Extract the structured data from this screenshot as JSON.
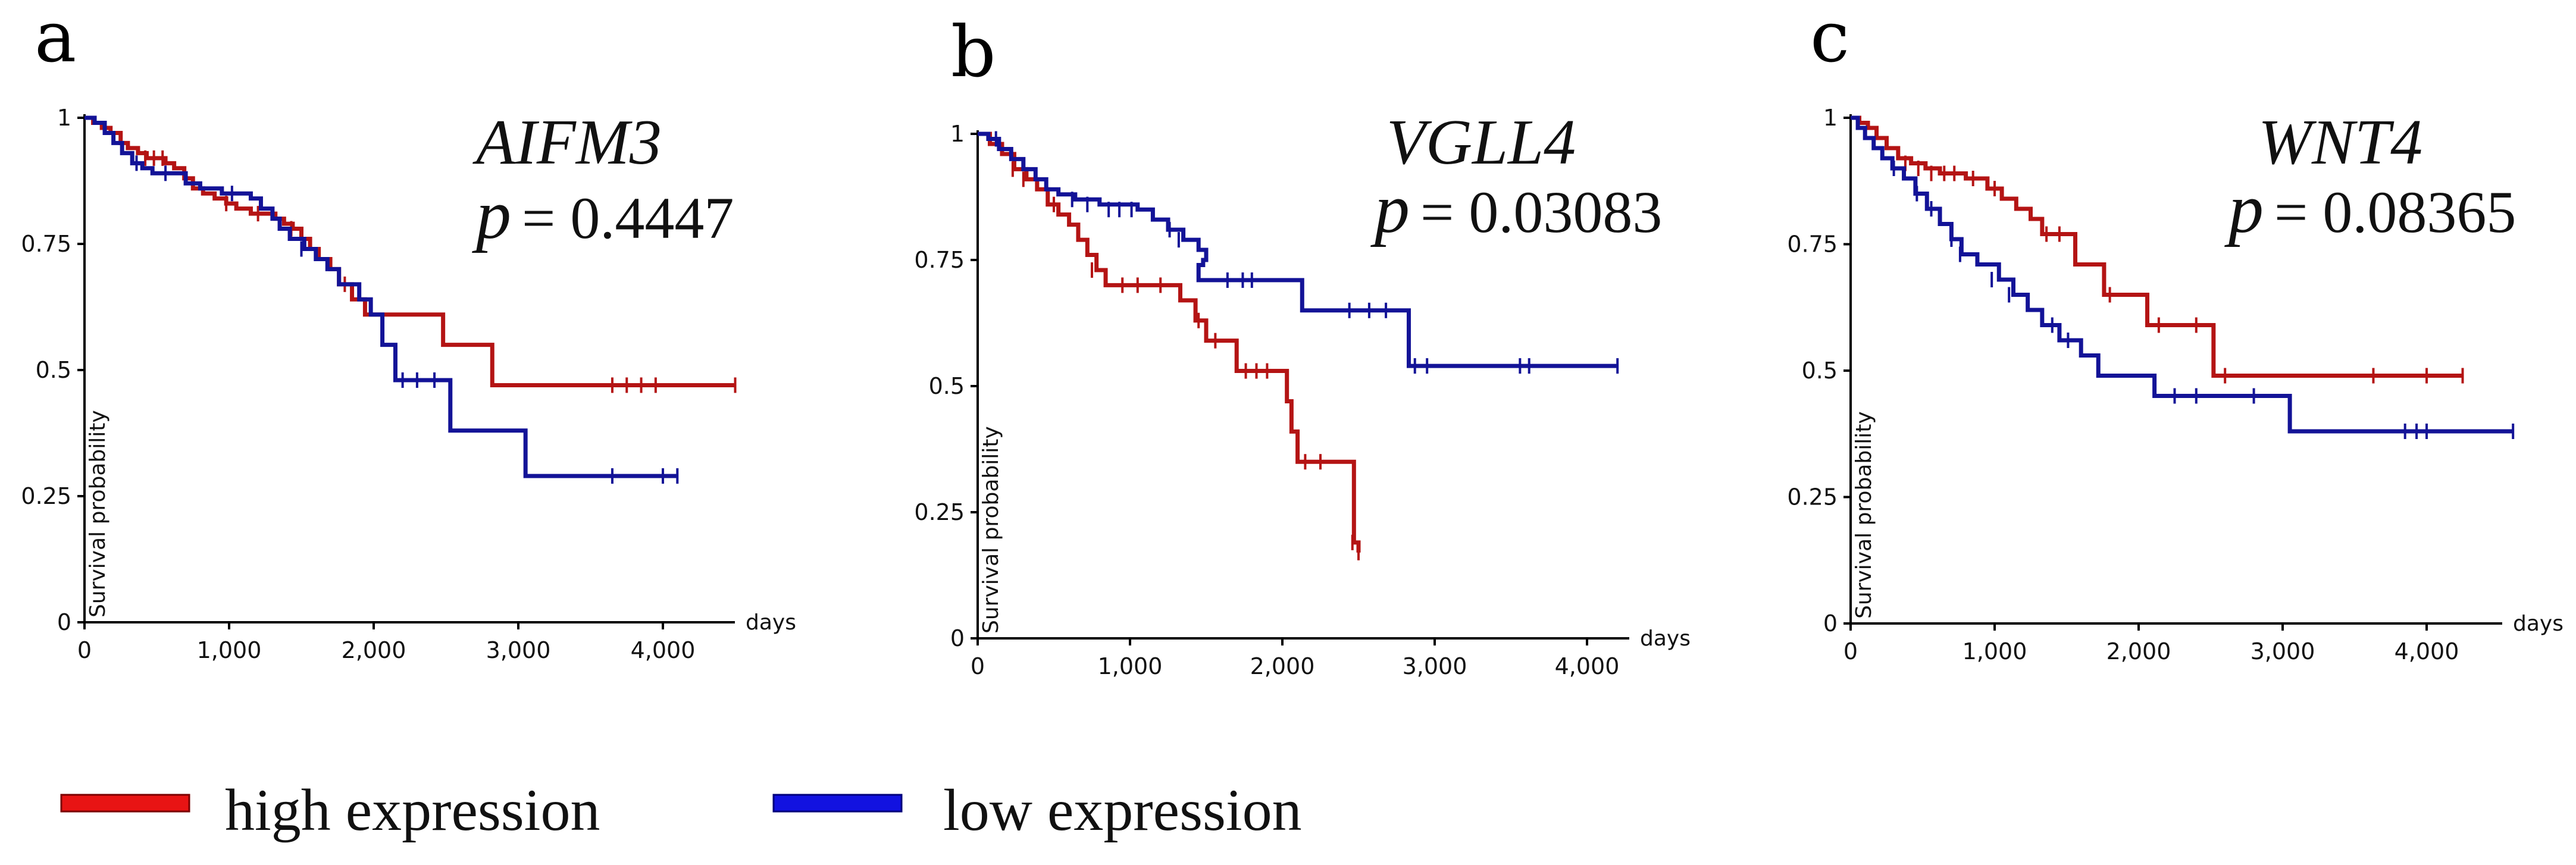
{
  "legend": {
    "items": [
      {
        "label": "high expression",
        "color": "#e81414"
      },
      {
        "label": "low expression",
        "color": "#1212e0"
      }
    ]
  },
  "chart_data": [
    {
      "type": "line",
      "panel_label": "a",
      "gene": "AIFM3",
      "p_symbol": "p",
      "p_value": "= 0.4447",
      "xlabel": "days",
      "ylabel": "Survival probability",
      "xlim": [
        0,
        4500
      ],
      "ylim": [
        0,
        1
      ],
      "x_ticks": [
        "0",
        "1,000",
        "2,000",
        "3,000",
        "4,000"
      ],
      "y_ticks": [
        "0",
        "0.25",
        "0.5",
        "0.75",
        "1"
      ],
      "series": [
        {
          "name": "high expression",
          "color": "#b41414",
          "steps": [
            [
              0,
              1
            ],
            [
              60,
              0.99
            ],
            [
              120,
              0.98
            ],
            [
              180,
              0.97
            ],
            [
              250,
              0.95
            ],
            [
              300,
              0.94
            ],
            [
              370,
              0.93
            ],
            [
              430,
              0.92
            ],
            [
              500,
              0.92
            ],
            [
              560,
              0.91
            ],
            [
              620,
              0.9
            ],
            [
              690,
              0.88
            ],
            [
              750,
              0.86
            ],
            [
              820,
              0.85
            ],
            [
              900,
              0.84
            ],
            [
              980,
              0.83
            ],
            [
              1050,
              0.82
            ],
            [
              1150,
              0.81
            ],
            [
              1250,
              0.81
            ],
            [
              1320,
              0.8
            ],
            [
              1380,
              0.79
            ],
            [
              1440,
              0.78
            ],
            [
              1500,
              0.76
            ],
            [
              1560,
              0.74
            ],
            [
              1620,
              0.72
            ],
            [
              1700,
              0.7
            ],
            [
              1760,
              0.67
            ],
            [
              1850,
              0.64
            ],
            [
              1940,
              0.61
            ],
            [
              2480,
              0.55
            ],
            [
              2820,
              0.47
            ],
            [
              4500,
              0.47
            ]
          ],
          "censors": [
            [
              420,
              0.92
            ],
            [
              480,
              0.92
            ],
            [
              540,
              0.92
            ],
            [
              980,
              0.83
            ],
            [
              1200,
              0.81
            ],
            [
              1430,
              0.78
            ],
            [
              1800,
              0.67
            ],
            [
              3650,
              0.47
            ],
            [
              3750,
              0.47
            ],
            [
              3850,
              0.47
            ],
            [
              3950,
              0.47
            ],
            [
              4500,
              0.47
            ]
          ]
        },
        {
          "name": "low expression",
          "color": "#131397",
          "steps": [
            [
              0,
              1
            ],
            [
              70,
              0.99
            ],
            [
              140,
              0.97
            ],
            [
              200,
              0.95
            ],
            [
              260,
              0.93
            ],
            [
              330,
              0.91
            ],
            [
              400,
              0.9
            ],
            [
              470,
              0.89
            ],
            [
              700,
              0.87
            ],
            [
              800,
              0.86
            ],
            [
              950,
              0.85
            ],
            [
              1050,
              0.85
            ],
            [
              1150,
              0.84
            ],
            [
              1220,
              0.82
            ],
            [
              1300,
              0.8
            ],
            [
              1350,
              0.78
            ],
            [
              1420,
              0.76
            ],
            [
              1520,
              0.74
            ],
            [
              1600,
              0.72
            ],
            [
              1680,
              0.7
            ],
            [
              1760,
              0.67
            ],
            [
              1900,
              0.64
            ],
            [
              1980,
              0.61
            ],
            [
              2060,
              0.55
            ],
            [
              2150,
              0.48
            ],
            [
              2530,
              0.38
            ],
            [
              3050,
              0.29
            ],
            [
              4100,
              0.29
            ]
          ],
          "censors": [
            [
              360,
              0.91
            ],
            [
              560,
              0.89
            ],
            [
              1020,
              0.85
            ],
            [
              1500,
              0.74
            ],
            [
              2200,
              0.48
            ],
            [
              2300,
              0.48
            ],
            [
              2420,
              0.48
            ],
            [
              3650,
              0.29
            ],
            [
              4000,
              0.29
            ],
            [
              4100,
              0.29
            ]
          ]
        }
      ]
    },
    {
      "type": "line",
      "panel_label": "b",
      "gene": "VGLL4",
      "p_symbol": "p",
      "p_value": "= 0.03083",
      "xlabel": "days",
      "ylabel": "Survival probability",
      "xlim": [
        0,
        4200
      ],
      "ylim": [
        0,
        1
      ],
      "x_ticks": [
        "0",
        "1,000",
        "2,000",
        "3,000",
        "4,000"
      ],
      "y_ticks": [
        "0",
        "0.25",
        "0.5",
        "0.75",
        "1"
      ],
      "series": [
        {
          "name": "high expression",
          "color": "#b41414",
          "steps": [
            [
              0,
              1
            ],
            [
              80,
              0.98
            ],
            [
              160,
              0.96
            ],
            [
              240,
              0.93
            ],
            [
              320,
              0.91
            ],
            [
              390,
              0.89
            ],
            [
              460,
              0.86
            ],
            [
              530,
              0.84
            ],
            [
              600,
              0.82
            ],
            [
              660,
              0.79
            ],
            [
              720,
              0.76
            ],
            [
              780,
              0.73
            ],
            [
              840,
              0.7
            ],
            [
              1330,
              0.67
            ],
            [
              1430,
              0.63
            ],
            [
              1500,
              0.59
            ],
            [
              1700,
              0.53
            ],
            [
              2030,
              0.47
            ],
            [
              2060,
              0.41
            ],
            [
              2100,
              0.35
            ],
            [
              2470,
              0.19
            ],
            [
              2500,
              0.17
            ]
          ],
          "censors": [
            [
              230,
              0.93
            ],
            [
              300,
              0.91
            ],
            [
              500,
              0.86
            ],
            [
              750,
              0.73
            ],
            [
              950,
              0.7
            ],
            [
              1050,
              0.7
            ],
            [
              1200,
              0.7
            ],
            [
              1450,
              0.63
            ],
            [
              1560,
              0.59
            ],
            [
              1760,
              0.53
            ],
            [
              1830,
              0.53
            ],
            [
              1900,
              0.53
            ],
            [
              2150,
              0.35
            ],
            [
              2250,
              0.35
            ],
            [
              2460,
              0.19
            ],
            [
              2500,
              0.17
            ]
          ]
        },
        {
          "name": "low expression",
          "color": "#131397",
          "steps": [
            [
              0,
              1
            ],
            [
              70,
              0.99
            ],
            [
              140,
              0.97
            ],
            [
              220,
              0.95
            ],
            [
              300,
              0.93
            ],
            [
              380,
              0.91
            ],
            [
              450,
              0.89
            ],
            [
              530,
              0.88
            ],
            [
              640,
              0.87
            ],
            [
              800,
              0.86
            ],
            [
              1050,
              0.85
            ],
            [
              1150,
              0.83
            ],
            [
              1250,
              0.81
            ],
            [
              1350,
              0.79
            ],
            [
              1450,
              0.77
            ],
            [
              1500,
              0.75
            ],
            [
              1480,
              0.74
            ],
            [
              1450,
              0.71
            ],
            [
              2130,
              0.65
            ],
            [
              2830,
              0.54
            ],
            [
              4200,
              0.54
            ]
          ],
          "censors": [
            [
              120,
              0.99
            ],
            [
              620,
              0.87
            ],
            [
              720,
              0.86
            ],
            [
              860,
              0.85
            ],
            [
              930,
              0.85
            ],
            [
              1010,
              0.85
            ],
            [
              1260,
              0.81
            ],
            [
              1320,
              0.79
            ],
            [
              1640,
              0.71
            ],
            [
              1740,
              0.71
            ],
            [
              1800,
              0.71
            ],
            [
              2440,
              0.65
            ],
            [
              2570,
              0.65
            ],
            [
              2680,
              0.65
            ],
            [
              2870,
              0.54
            ],
            [
              2950,
              0.54
            ],
            [
              3560,
              0.54
            ],
            [
              3620,
              0.54
            ],
            [
              4200,
              0.54
            ]
          ]
        }
      ]
    },
    {
      "type": "line",
      "panel_label": "c",
      "gene": "WNT4",
      "p_symbol": "p",
      "p_value": "= 0.08365",
      "xlabel": "days",
      "ylabel": "Survival probability",
      "xlim": [
        0,
        4600
      ],
      "ylim": [
        0,
        1
      ],
      "x_ticks": [
        "0",
        "1,000",
        "2,000",
        "3,000",
        "4,000"
      ],
      "y_ticks": [
        "0",
        "0.25",
        "0.5",
        "0.75",
        "1"
      ],
      "series": [
        {
          "name": "high expression",
          "color": "#b41414",
          "steps": [
            [
              0,
              1
            ],
            [
              60,
              0.99
            ],
            [
              120,
              0.98
            ],
            [
              180,
              0.96
            ],
            [
              250,
              0.94
            ],
            [
              330,
              0.92
            ],
            [
              420,
              0.91
            ],
            [
              520,
              0.9
            ],
            [
              620,
              0.89
            ],
            [
              800,
              0.88
            ],
            [
              950,
              0.86
            ],
            [
              1050,
              0.84
            ],
            [
              1150,
              0.82
            ],
            [
              1250,
              0.8
            ],
            [
              1330,
              0.77
            ],
            [
              1560,
              0.71
            ],
            [
              1760,
              0.65
            ],
            [
              2060,
              0.59
            ],
            [
              2520,
              0.49
            ],
            [
              4250,
              0.49
            ]
          ],
          "censors": [
            [
              380,
              0.91
            ],
            [
              470,
              0.9
            ],
            [
              560,
              0.89
            ],
            [
              650,
              0.89
            ],
            [
              720,
              0.89
            ],
            [
              850,
              0.88
            ],
            [
              1000,
              0.86
            ],
            [
              1360,
              0.77
            ],
            [
              1450,
              0.77
            ],
            [
              1800,
              0.65
            ],
            [
              2140,
              0.59
            ],
            [
              2400,
              0.59
            ],
            [
              2600,
              0.49
            ],
            [
              3630,
              0.49
            ],
            [
              4000,
              0.49
            ],
            [
              4250,
              0.49
            ]
          ]
        },
        {
          "name": "low expression",
          "color": "#131397",
          "steps": [
            [
              0,
              1
            ],
            [
              50,
              0.98
            ],
            [
              100,
              0.96
            ],
            [
              160,
              0.94
            ],
            [
              220,
              0.92
            ],
            [
              290,
              0.9
            ],
            [
              370,
              0.88
            ],
            [
              450,
              0.85
            ],
            [
              530,
              0.82
            ],
            [
              620,
              0.79
            ],
            [
              700,
              0.76
            ],
            [
              770,
              0.73
            ],
            [
              880,
              0.71
            ],
            [
              1030,
              0.68
            ],
            [
              1130,
              0.65
            ],
            [
              1230,
              0.62
            ],
            [
              1330,
              0.59
            ],
            [
              1450,
              0.56
            ],
            [
              1600,
              0.53
            ],
            [
              1720,
              0.49
            ],
            [
              2110,
              0.45
            ],
            [
              3050,
              0.38
            ],
            [
              4600,
              0.38
            ]
          ],
          "censors": [
            [
              300,
              0.9
            ],
            [
              460,
              0.85
            ],
            [
              560,
              0.82
            ],
            [
              700,
              0.76
            ],
            [
              760,
              0.73
            ],
            [
              980,
              0.68
            ],
            [
              1100,
              0.65
            ],
            [
              1400,
              0.59
            ],
            [
              1510,
              0.56
            ],
            [
              2250,
              0.45
            ],
            [
              2400,
              0.45
            ],
            [
              2800,
              0.45
            ],
            [
              3850,
              0.38
            ],
            [
              3930,
              0.38
            ],
            [
              4000,
              0.38
            ],
            [
              4600,
              0.38
            ]
          ]
        }
      ]
    }
  ]
}
